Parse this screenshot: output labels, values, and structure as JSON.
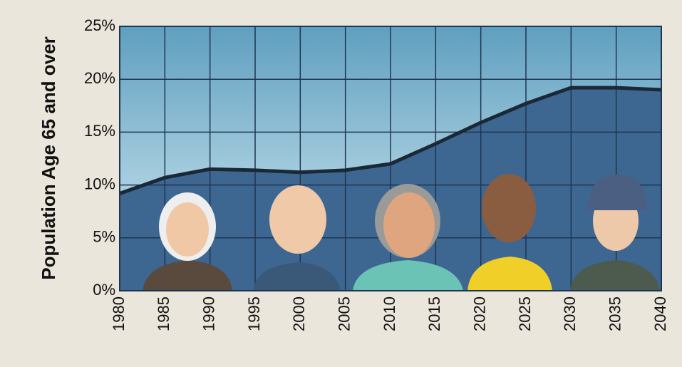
{
  "chart_data": {
    "type": "area",
    "y_label": "Population Age 65 and  over",
    "x": [
      1980,
      1985,
      1990,
      1995,
      2000,
      2005,
      2010,
      2015,
      2020,
      2025,
      2030,
      2035,
      2040
    ],
    "values": [
      9.2,
      10.7,
      11.5,
      11.4,
      11.2,
      11.4,
      12.0,
      13.9,
      15.9,
      17.7,
      19.2,
      19.2,
      19.0
    ],
    "color": "#3d6791",
    "line_color": "#1b2836",
    "xlim": [
      1980,
      2040
    ],
    "xticks": [
      1980,
      1985,
      1990,
      1995,
      2000,
      2005,
      2010,
      2015,
      2020,
      2025,
      2030,
      2035,
      2040
    ],
    "ylim": [
      0,
      25
    ],
    "yticks": [
      {
        "value": 0,
        "label": "0%"
      },
      {
        "value": 5,
        "label": "5%"
      },
      {
        "value": 10,
        "label": "10%"
      },
      {
        "value": 15,
        "label": "15%"
      },
      {
        "value": 20,
        "label": "20%"
      },
      {
        "value": 25,
        "label": "25%"
      }
    ],
    "grid": true
  }
}
